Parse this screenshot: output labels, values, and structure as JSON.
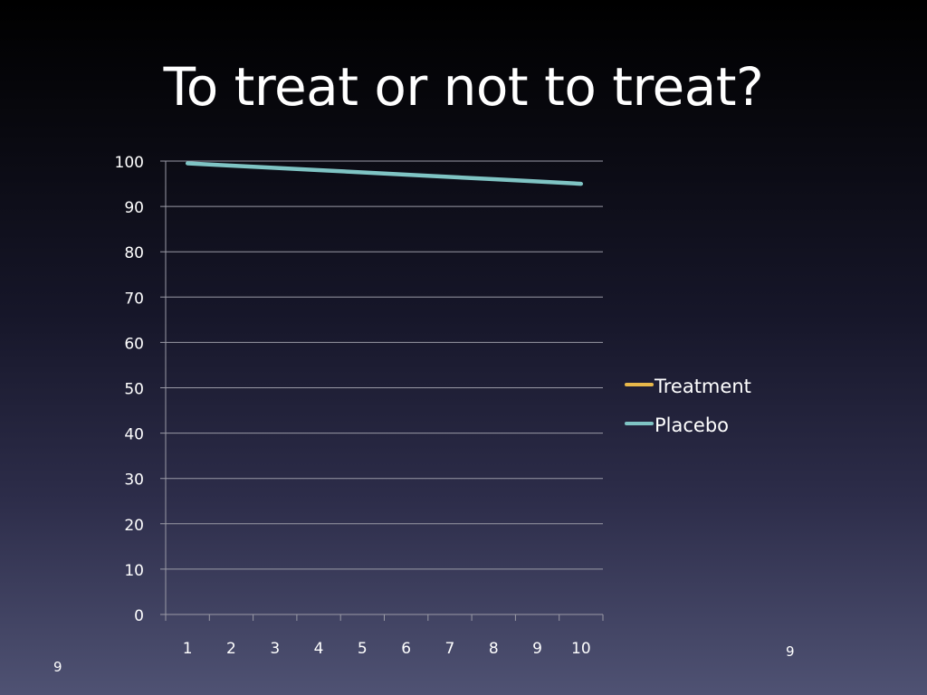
{
  "slide": {
    "title": "To treat or not to treat?",
    "slide_number_left": "9",
    "slide_number_right": "9"
  },
  "chart_data": {
    "type": "line",
    "categories": [
      "1",
      "2",
      "3",
      "4",
      "5",
      "6",
      "7",
      "8",
      "9",
      "10"
    ],
    "series": [
      {
        "name": "Treatment",
        "color": "#e8b84a",
        "values": [
          null,
          null,
          null,
          null,
          null,
          null,
          null,
          null,
          null,
          null
        ]
      },
      {
        "name": "Placebo",
        "color": "#7fc4c4",
        "values": [
          99.5,
          99,
          98.5,
          98,
          97.5,
          97,
          96.5,
          96,
          95.5,
          95
        ]
      }
    ],
    "y_ticks": [
      "0",
      "10",
      "20",
      "30",
      "40",
      "50",
      "60",
      "70",
      "80",
      "90",
      "100"
    ],
    "ylim": [
      0,
      100
    ],
    "grid": true,
    "legend_position": "right"
  }
}
